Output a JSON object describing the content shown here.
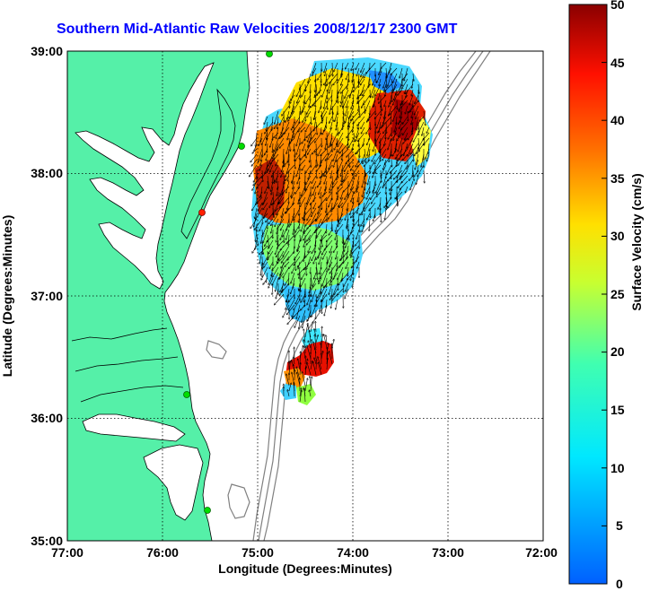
{
  "title": "Southern Mid-Atlantic Raw Velocities 2008/12/17 2300 GMT",
  "x_axis": {
    "label": "Longitude (Degrees:Minutes)",
    "ticks": [
      "77:00",
      "76:00",
      "75:00",
      "74:00",
      "73:00",
      "72:00"
    ]
  },
  "y_axis": {
    "label": "Latitude (Degrees:Minutes)",
    "ticks": [
      "39:00",
      "38:00",
      "37:00",
      "36:00",
      "35:00"
    ]
  },
  "colorbar": {
    "label": "Surface Velocity (cm/s)",
    "ticks": [
      "50",
      "45",
      "40",
      "35",
      "30",
      "25",
      "20",
      "15",
      "10",
      "5",
      "0"
    ],
    "min": 0,
    "max": 50,
    "colormap": "jet"
  },
  "colors": {
    "land": "#55f0a8",
    "coastline": "#000000",
    "bathymetry": "#808080",
    "title": "#0000ff",
    "station": "#00cc00"
  },
  "map_extent": {
    "lon": [
      -77,
      -72
    ],
    "lat": [
      35,
      39
    ]
  },
  "grid": "dotted"
}
